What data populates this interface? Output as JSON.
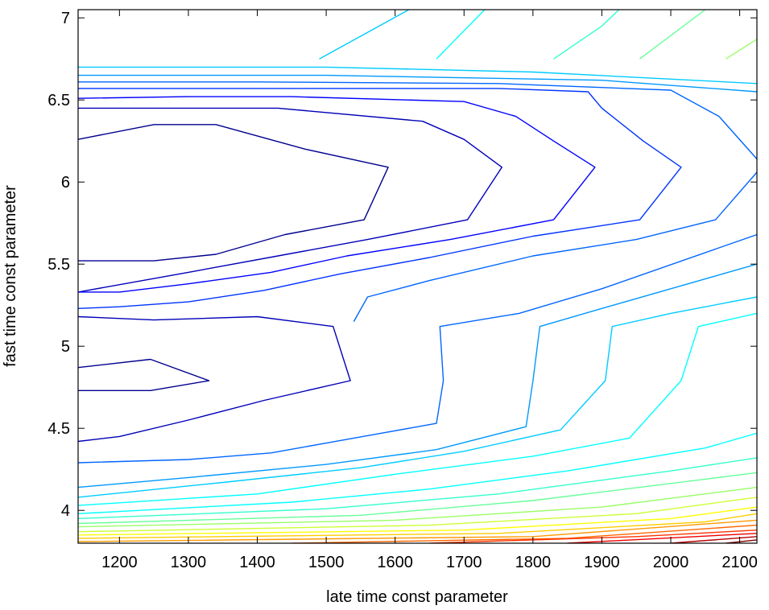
{
  "chart_data": {
    "type": "contour",
    "xlabel": "late time const parameter",
    "ylabel": "fast time const parameter",
    "xlim": [
      1140,
      2125
    ],
    "ylim": [
      3.8,
      7.05
    ],
    "xticks": [
      1200,
      1300,
      1400,
      1500,
      1600,
      1700,
      1800,
      1900,
      2000,
      2100
    ],
    "yticks": [
      4,
      4.5,
      5,
      5.5,
      6,
      6.5,
      7
    ],
    "ytick_labels": [
      "4",
      "4.5",
      "5",
      "5.5",
      "6",
      "6.5",
      "7"
    ],
    "colormap": "jet",
    "levels": [
      {
        "level": 1,
        "color": "#00008f",
        "paths": [
          [
            [
              1140,
              6.26
            ],
            [
              1250,
              6.35
            ],
            [
              1340,
              6.35
            ],
            [
              1470,
              6.2
            ],
            [
              1590,
              6.09
            ],
            [
              1555,
              5.77
            ],
            [
              1440,
              5.68
            ],
            [
              1340,
              5.56
            ],
            [
              1250,
              5.52
            ],
            [
              1140,
              5.52
            ]
          ],
          [
            [
              1140,
              4.87
            ],
            [
              1245,
              4.92
            ],
            [
              1330,
              4.79
            ],
            [
              1245,
              4.73
            ],
            [
              1140,
              4.73
            ]
          ]
        ]
      },
      {
        "level": 2,
        "color": "#0000b8",
        "paths": [
          [
            [
              1140,
              6.45
            ],
            [
              1300,
              6.45
            ],
            [
              1430,
              6.45
            ],
            [
              1640,
              6.37
            ],
            [
              1700,
              6.26
            ],
            [
              1755,
              6.09
            ],
            [
              1705,
              5.77
            ],
            [
              1560,
              5.65
            ],
            [
              1430,
              5.55
            ],
            [
              1300,
              5.45
            ],
            [
              1140,
              5.33
            ]
          ],
          [
            [
              1140,
              5.18
            ],
            [
              1250,
              5.16
            ],
            [
              1400,
              5.18
            ],
            [
              1510,
              5.12
            ],
            [
              1535,
              4.79
            ],
            [
              1410,
              4.67
            ],
            [
              1300,
              4.55
            ],
            [
              1200,
              4.45
            ],
            [
              1140,
              4.42
            ]
          ]
        ]
      },
      {
        "level": 3,
        "color": "#0000ff",
        "paths": [
          [
            [
              1140,
              6.51
            ],
            [
              1300,
              6.52
            ],
            [
              1450,
              6.52
            ],
            [
              1700,
              6.49
            ],
            [
              1775,
              6.4
            ],
            [
              1830,
              6.25
            ],
            [
              1890,
              6.09
            ],
            [
              1830,
              5.77
            ],
            [
              1680,
              5.65
            ],
            [
              1530,
              5.55
            ],
            [
              1420,
              5.45
            ],
            [
              1300,
              5.38
            ],
            [
              1200,
              5.33
            ],
            [
              1140,
              5.33
            ]
          ]
        ]
      },
      {
        "level": 4,
        "color": "#0033ff",
        "paths": [
          [
            [
              1140,
              6.57
            ],
            [
              1400,
              6.57
            ],
            [
              1750,
              6.57
            ],
            [
              1880,
              6.55
            ],
            [
              1900,
              6.45
            ],
            [
              1960,
              6.25
            ],
            [
              2015,
              6.09
            ],
            [
              1955,
              5.77
            ],
            [
              1800,
              5.67
            ],
            [
              1650,
              5.54
            ],
            [
              1520,
              5.44
            ],
            [
              1410,
              5.34
            ],
            [
              1300,
              5.27
            ],
            [
              1200,
              5.24
            ],
            [
              1140,
              5.23
            ]
          ]
        ]
      },
      {
        "level": 5,
        "color": "#0066ff",
        "paths": [
          [
            [
              1140,
              6.61
            ],
            [
              1400,
              6.61
            ],
            [
              1750,
              6.6
            ],
            [
              2000,
              6.56
            ],
            [
              2070,
              6.4
            ],
            [
              2125,
              6.14
            ]
          ],
          [
            [
              2125,
              6.06
            ],
            [
              2065,
              5.77
            ],
            [
              1950,
              5.65
            ],
            [
              1800,
              5.55
            ],
            [
              1650,
              5.4
            ],
            [
              1560,
              5.3
            ],
            [
              1540,
              5.15
            ]
          ],
          [
            [
              1140,
              4.29
            ],
            [
              1300,
              4.31
            ],
            [
              1420,
              4.35
            ],
            [
              1500,
              4.41
            ],
            [
              1580,
              4.47
            ],
            [
              1660,
              4.53
            ],
            [
              1670,
              4.79
            ],
            [
              1665,
              5.12
            ],
            [
              1780,
              5.2
            ],
            [
              1900,
              5.35
            ],
            [
              2125,
              5.68
            ]
          ]
        ]
      },
      {
        "level": 6,
        "color": "#0099ff",
        "paths": [
          [
            [
              1140,
              6.65
            ],
            [
              1500,
              6.65
            ],
            [
              1900,
              6.62
            ],
            [
              2125,
              6.55
            ]
          ],
          [
            [
              1140,
              4.14
            ],
            [
              1300,
              4.2
            ],
            [
              1500,
              4.28
            ],
            [
              1660,
              4.37
            ],
            [
              1790,
              4.51
            ],
            [
              1800,
              4.79
            ],
            [
              1810,
              5.12
            ],
            [
              1900,
              5.23
            ],
            [
              2000,
              5.35
            ],
            [
              2125,
              5.5
            ]
          ]
        ]
      },
      {
        "level": 7,
        "color": "#00ccff",
        "paths": [
          [
            [
              1140,
              6.7
            ],
            [
              1500,
              6.7
            ],
            [
              1800,
              6.67
            ],
            [
              2125,
              6.6
            ]
          ],
          [
            [
              1490,
              6.75
            ],
            [
              1620,
              7.05
            ]
          ],
          [
            [
              1140,
              4.08
            ],
            [
              1350,
              4.17
            ],
            [
              1550,
              4.26
            ],
            [
              1700,
              4.36
            ],
            [
              1840,
              4.49
            ],
            [
              1905,
              4.79
            ],
            [
              1915,
              5.12
            ],
            [
              2000,
              5.2
            ],
            [
              2125,
              5.3
            ]
          ]
        ]
      },
      {
        "level": 8,
        "color": "#00ffff",
        "paths": [
          [
            [
              1660,
              6.75
            ],
            [
              1730,
              7.05
            ]
          ],
          [
            [
              1140,
              4.03
            ],
            [
              1400,
              4.1
            ],
            [
              1600,
              4.22
            ],
            [
              1800,
              4.33
            ],
            [
              1940,
              4.44
            ],
            [
              2015,
              4.79
            ],
            [
              2040,
              5.12
            ],
            [
              2125,
              5.2
            ]
          ],
          [
            [
              1140,
              3.98
            ],
            [
              1450,
              4.05
            ],
            [
              1650,
              4.13
            ],
            [
              1850,
              4.24
            ],
            [
              2050,
              4.38
            ],
            [
              2125,
              4.47
            ]
          ]
        ]
      },
      {
        "level": 9,
        "color": "#33ffcc",
        "paths": [
          [
            [
              1830,
              6.75
            ],
            [
              1900,
              6.95
            ],
            [
              1925,
              7.05
            ]
          ],
          [
            [
              1140,
              3.95
            ],
            [
              1500,
              4.01
            ],
            [
              1750,
              4.1
            ],
            [
              2000,
              4.24
            ],
            [
              2125,
              4.32
            ]
          ]
        ]
      },
      {
        "level": 10,
        "color": "#66ff99",
        "paths": [
          [
            [
              1955,
              6.75
            ],
            [
              2050,
              7.05
            ]
          ],
          [
            [
              1140,
              3.92
            ],
            [
              1550,
              3.97
            ],
            [
              1800,
              4.06
            ],
            [
              2050,
              4.19
            ],
            [
              2125,
              4.23
            ]
          ]
        ]
      },
      {
        "level": 11,
        "color": "#99ff66",
        "paths": [
          [
            [
              2080,
              6.75
            ],
            [
              2125,
              6.87
            ]
          ],
          [
            [
              1140,
              3.9
            ],
            [
              1600,
              3.94
            ],
            [
              1900,
              4.02
            ],
            [
              2125,
              4.14
            ]
          ]
        ]
      },
      {
        "level": 12,
        "color": "#ccff33",
        "paths": [
          [
            [
              1140,
              3.87
            ],
            [
              1650,
              3.91
            ],
            [
              1950,
              3.98
            ],
            [
              2125,
              4.08
            ]
          ]
        ]
      },
      {
        "level": 13,
        "color": "#ffff00",
        "paths": [
          [
            [
              1140,
              3.85
            ],
            [
              1700,
              3.88
            ],
            [
              2000,
              3.95
            ],
            [
              2125,
              4.02
            ]
          ]
        ]
      },
      {
        "level": 14,
        "color": "#ffcc00",
        "paths": [
          [
            [
              1140,
              3.83
            ],
            [
              1750,
              3.86
            ],
            [
              2050,
              3.93
            ],
            [
              2125,
              3.98
            ]
          ]
        ]
      },
      {
        "level": 15,
        "color": "#ff9900",
        "paths": [
          [
            [
              1140,
              3.81
            ],
            [
              1800,
              3.84
            ],
            [
              2125,
              3.94
            ]
          ]
        ]
      },
      {
        "level": 16,
        "color": "#ff6600",
        "paths": [
          [
            [
              1450,
              3.8
            ],
            [
              1850,
              3.83
            ],
            [
              2125,
              3.91
            ]
          ]
        ]
      },
      {
        "level": 17,
        "color": "#ff3300",
        "paths": [
          [
            [
              1650,
              3.8
            ],
            [
              1950,
              3.84
            ],
            [
              2125,
              3.88
            ]
          ]
        ]
      },
      {
        "level": 18,
        "color": "#ee0000",
        "paths": [
          [
            [
              1850,
              3.8
            ],
            [
              2125,
              3.86
            ]
          ]
        ]
      },
      {
        "level": 19,
        "color": "#b80000",
        "paths": [
          [
            [
              2000,
              3.8
            ],
            [
              2125,
              3.84
            ]
          ]
        ]
      },
      {
        "level": 20,
        "color": "#800000",
        "paths": [
          [
            [
              2080,
              3.8
            ],
            [
              2125,
              3.82
            ]
          ]
        ]
      }
    ]
  }
}
